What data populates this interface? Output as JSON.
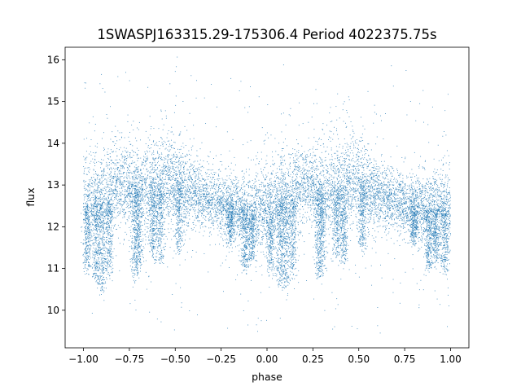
{
  "chart_data": {
    "type": "scatter",
    "title": "1SWASPJ163315.29-175306.4 Period 4022375.75s",
    "xlabel": "phase",
    "ylabel": "flux",
    "xlim": [
      -1.1,
      1.1
    ],
    "ylim": [
      9.1,
      16.3
    ],
    "xticks": [
      -1.0,
      -0.75,
      -0.5,
      -0.25,
      0.0,
      0.25,
      0.5,
      0.75,
      1.0
    ],
    "xtick_labels": [
      "−1.00",
      "−0.75",
      "−0.50",
      "−0.25",
      "0.00",
      "0.25",
      "0.50",
      "0.75",
      "1.00"
    ],
    "yticks": [
      10,
      11,
      12,
      13,
      14,
      15,
      16
    ],
    "ytick_labels": [
      "10",
      "11",
      "12",
      "13",
      "14",
      "15",
      "16"
    ],
    "grid": false,
    "marker_color": "#1f77b4",
    "series": [
      {
        "phase_range": [
          -1.0,
          1.0
        ],
        "folded_light_curve": {
          "x": [
            -1.0,
            -0.95,
            -0.9,
            -0.85,
            -0.8,
            -0.75,
            -0.7,
            -0.65,
            -0.6,
            -0.55,
            -0.5,
            -0.45,
            -0.4,
            -0.35,
            -0.3,
            -0.25,
            -0.2,
            -0.15,
            -0.1,
            -0.05,
            0.0,
            0.05,
            0.1,
            0.15,
            0.2,
            0.25,
            0.3,
            0.35,
            0.4,
            0.45,
            0.5,
            0.55,
            0.6,
            0.65,
            0.7,
            0.75,
            0.8,
            0.85,
            0.9,
            0.95,
            1.0
          ],
          "median_flux": [
            12.5,
            12.6,
            12.6,
            12.8,
            13.0,
            13.0,
            12.9,
            12.9,
            12.9,
            13.1,
            13.1,
            12.9,
            12.8,
            12.7,
            12.6,
            12.5,
            12.5,
            12.4,
            12.4,
            12.5,
            12.5,
            12.6,
            12.6,
            12.8,
            13.0,
            13.0,
            12.9,
            12.9,
            12.9,
            13.1,
            13.1,
            12.9,
            12.8,
            12.7,
            12.6,
            12.5,
            12.5,
            12.4,
            12.4,
            12.5,
            12.5
          ],
          "scatter": [
            0.5,
            0.5,
            0.55,
            0.5,
            0.45,
            0.45,
            0.5,
            0.55,
            0.55,
            0.55,
            0.5,
            0.45,
            0.4,
            0.35,
            0.35,
            0.35,
            0.35,
            0.4,
            0.45,
            0.5,
            0.5,
            0.5,
            0.55,
            0.5,
            0.45,
            0.45,
            0.5,
            0.55,
            0.55,
            0.55,
            0.5,
            0.45,
            0.4,
            0.35,
            0.35,
            0.35,
            0.35,
            0.4,
            0.45,
            0.5,
            0.5
          ]
        },
        "dip_columns": {
          "x": [
            -0.98,
            -0.93,
            -0.9,
            -0.86,
            -0.72,
            -0.7,
            -0.62,
            -0.58,
            -0.48,
            -0.2,
            -0.12,
            -0.08,
            0.02,
            0.07,
            0.1,
            0.14,
            0.28,
            0.3,
            0.38,
            0.42,
            0.52,
            0.8,
            0.88,
            0.92,
            0.97
          ],
          "low_flux": [
            11.0,
            10.7,
            10.5,
            10.9,
            10.8,
            11.0,
            11.3,
            11.2,
            11.5,
            11.7,
            11.0,
            11.2,
            11.0,
            10.7,
            10.5,
            10.9,
            10.8,
            11.0,
            11.3,
            11.2,
            11.5,
            11.7,
            11.0,
            11.2,
            11.0
          ]
        },
        "outlier_flux_range": [
          9.4,
          15.9
        ]
      }
    ]
  }
}
